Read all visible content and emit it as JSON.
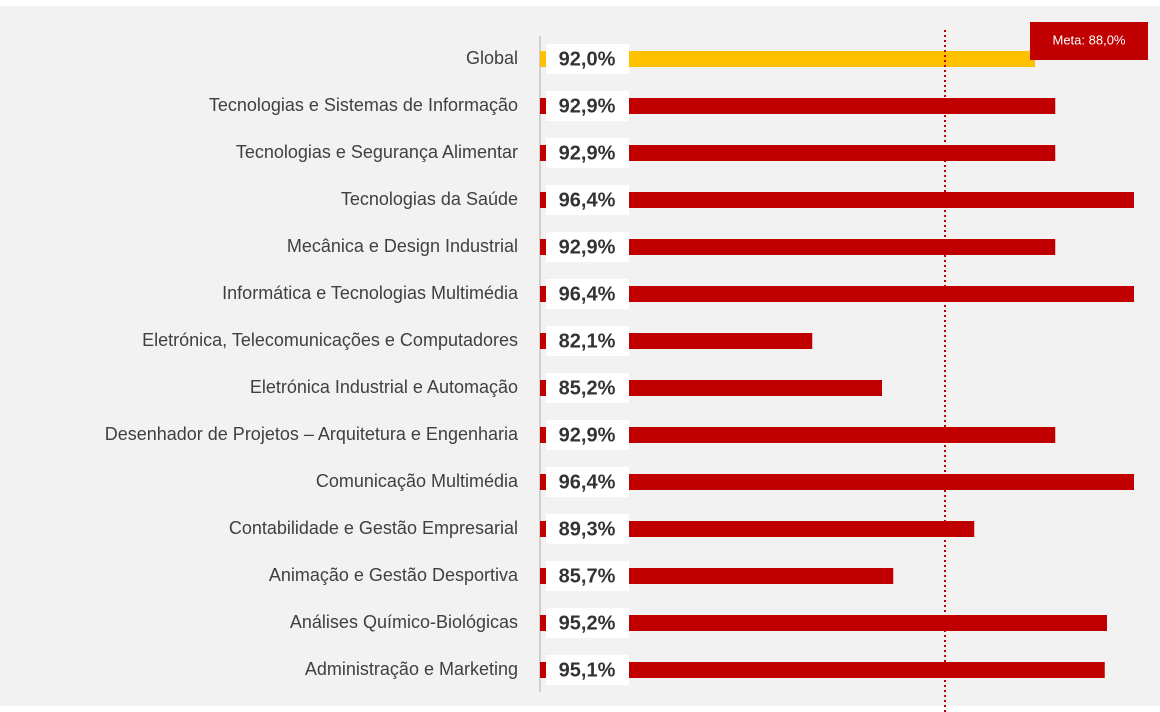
{
  "chart_data": {
    "type": "hbar",
    "categories": [
      "Global",
      "Tecnologias e Sistemas de Informação",
      "Tecnologias e Segurança Alimentar",
      "Tecnologias da Saúde",
      "Mecânica e Design Industrial",
      "Informática e Tecnologias Multimédia",
      "Eletrónica, Telecomunicações e Computadores",
      "Eletrónica Industrial e Automação",
      "Desenhador de Projetos – Arquitetura e Engenharia",
      "Comunicação Multimédia",
      "Contabilidade e Gestão Empresarial",
      "Animação e Gestão Desportiva",
      "Análises Químico-Biológicas",
      "Administração e Marketing"
    ],
    "values": [
      92.0,
      92.9,
      92.9,
      96.4,
      92.9,
      96.4,
      82.1,
      85.2,
      92.9,
      96.4,
      89.3,
      85.7,
      95.2,
      95.1
    ],
    "value_labels": [
      "92,0%",
      "92,9%",
      "92,9%",
      "96,4%",
      "92,9%",
      "96,4%",
      "82,1%",
      "85,2%",
      "92,9%",
      "96,4%",
      "89,3%",
      "85,7%",
      "95,2%",
      "95,1%"
    ],
    "colors": [
      "#ffc000",
      "#c00000",
      "#c00000",
      "#c00000",
      "#c00000",
      "#c00000",
      "#c00000",
      "#c00000",
      "#c00000",
      "#c00000",
      "#c00000",
      "#c00000",
      "#c00000",
      "#c00000"
    ],
    "xlim": [
      70,
      97
    ],
    "target": {
      "value": 88,
      "label": "Meta: 88,0%",
      "color": "#c00000"
    }
  }
}
